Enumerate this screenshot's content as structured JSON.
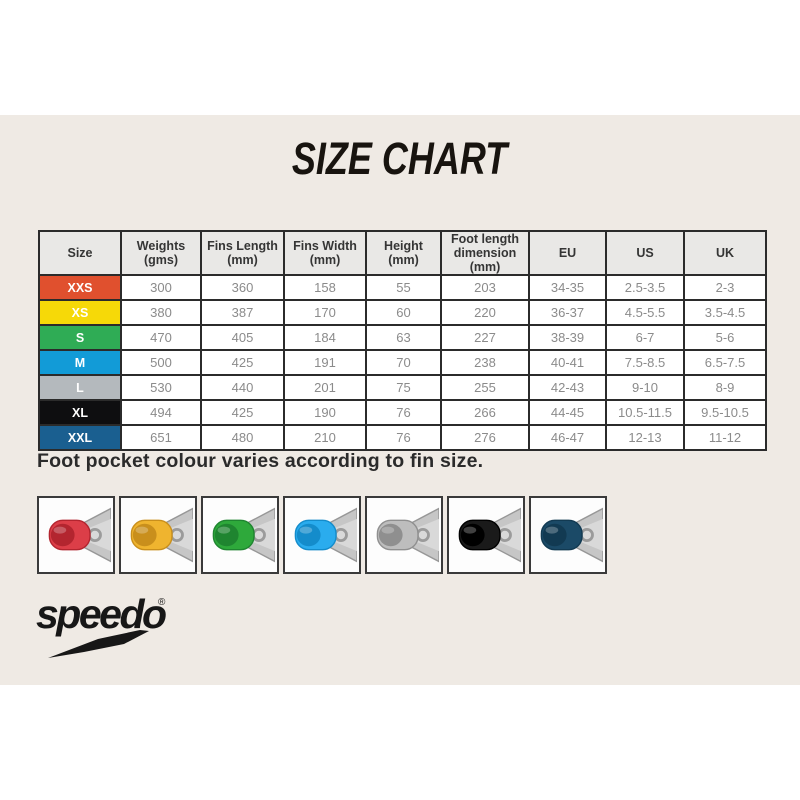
{
  "title": "SIZE CHART",
  "note": "Foot pocket colour varies according to fin size.",
  "colors": {
    "panel_background": "#efeae4",
    "table_border": "#2b2b2b",
    "header_background": "#e9e8e6",
    "cell_text": "#8b8b8b"
  },
  "table": {
    "headers": [
      {
        "label": "Size",
        "sub": ""
      },
      {
        "label": "Weights",
        "sub": "(gms)"
      },
      {
        "label": "Fins Length",
        "sub": "(mm)"
      },
      {
        "label": "Fins Width",
        "sub": "(mm)"
      },
      {
        "label": "Height",
        "sub": "(mm)"
      },
      {
        "label": "Foot length",
        "sub": "dimension (mm)"
      },
      {
        "label": "EU",
        "sub": ""
      },
      {
        "label": "US",
        "sub": ""
      },
      {
        "label": "UK",
        "sub": ""
      }
    ],
    "rows": [
      {
        "size": "XXS",
        "row_color": "#e0502e",
        "label_color": "#ffffff",
        "values": [
          "300",
          "360",
          "158",
          "55",
          "203",
          "34-35",
          "2.5-3.5",
          "2-3"
        ]
      },
      {
        "size": "XS",
        "row_color": "#f6d908",
        "label_color": "#ffffff",
        "values": [
          "380",
          "387",
          "170",
          "60",
          "220",
          "36-37",
          "4.5-5.5",
          "3.5-4.5"
        ]
      },
      {
        "size": "S",
        "row_color": "#2fac55",
        "label_color": "#ffffff",
        "values": [
          "470",
          "405",
          "184",
          "63",
          "227",
          "38-39",
          "6-7",
          "5-6"
        ]
      },
      {
        "size": "M",
        "row_color": "#129bd7",
        "label_color": "#ffffff",
        "values": [
          "500",
          "425",
          "191",
          "70",
          "238",
          "40-41",
          "7.5-8.5",
          "6.5-7.5"
        ]
      },
      {
        "size": "L",
        "row_color": "#b4b9bd",
        "label_color": "#ffffff",
        "values": [
          "530",
          "440",
          "201",
          "75",
          "255",
          "42-43",
          "9-10",
          "8-9"
        ]
      },
      {
        "size": "XL",
        "row_color": "#0e0e10",
        "label_color": "#ffffff",
        "values": [
          "494",
          "425",
          "190",
          "76",
          "266",
          "44-45",
          "10.5-11.5",
          "9.5-10.5"
        ]
      },
      {
        "size": "XXL",
        "row_color": "#1a5f90",
        "label_color": "#ffffff",
        "values": [
          "651",
          "480",
          "210",
          "76",
          "276",
          "46-47",
          "12-13",
          "11-12"
        ]
      }
    ]
  },
  "fins": [
    {
      "name": "red-fin-thumbnail",
      "pocket": "#dc3e48",
      "pocket_dark": "#b3252f"
    },
    {
      "name": "yellow-fin-thumbnail",
      "pocket": "#efb42f",
      "pocket_dark": "#c98f1c"
    },
    {
      "name": "green-fin-thumbnail",
      "pocket": "#2ea93b",
      "pocket_dark": "#1f8530"
    },
    {
      "name": "blue-fin-thumbnail",
      "pocket": "#2aacee",
      "pocket_dark": "#148ccb"
    },
    {
      "name": "grey-fin-thumbnail",
      "pocket": "#bdbdbd",
      "pocket_dark": "#8f8f8f"
    },
    {
      "name": "black-fin-thumbnail",
      "pocket": "#1a1a1a",
      "pocket_dark": "#000000"
    },
    {
      "name": "navy-fin-thumbnail",
      "pocket": "#1b4a67",
      "pocket_dark": "#123a52"
    }
  ],
  "brand": {
    "logo_text": "speedo",
    "registered_mark": "®"
  }
}
